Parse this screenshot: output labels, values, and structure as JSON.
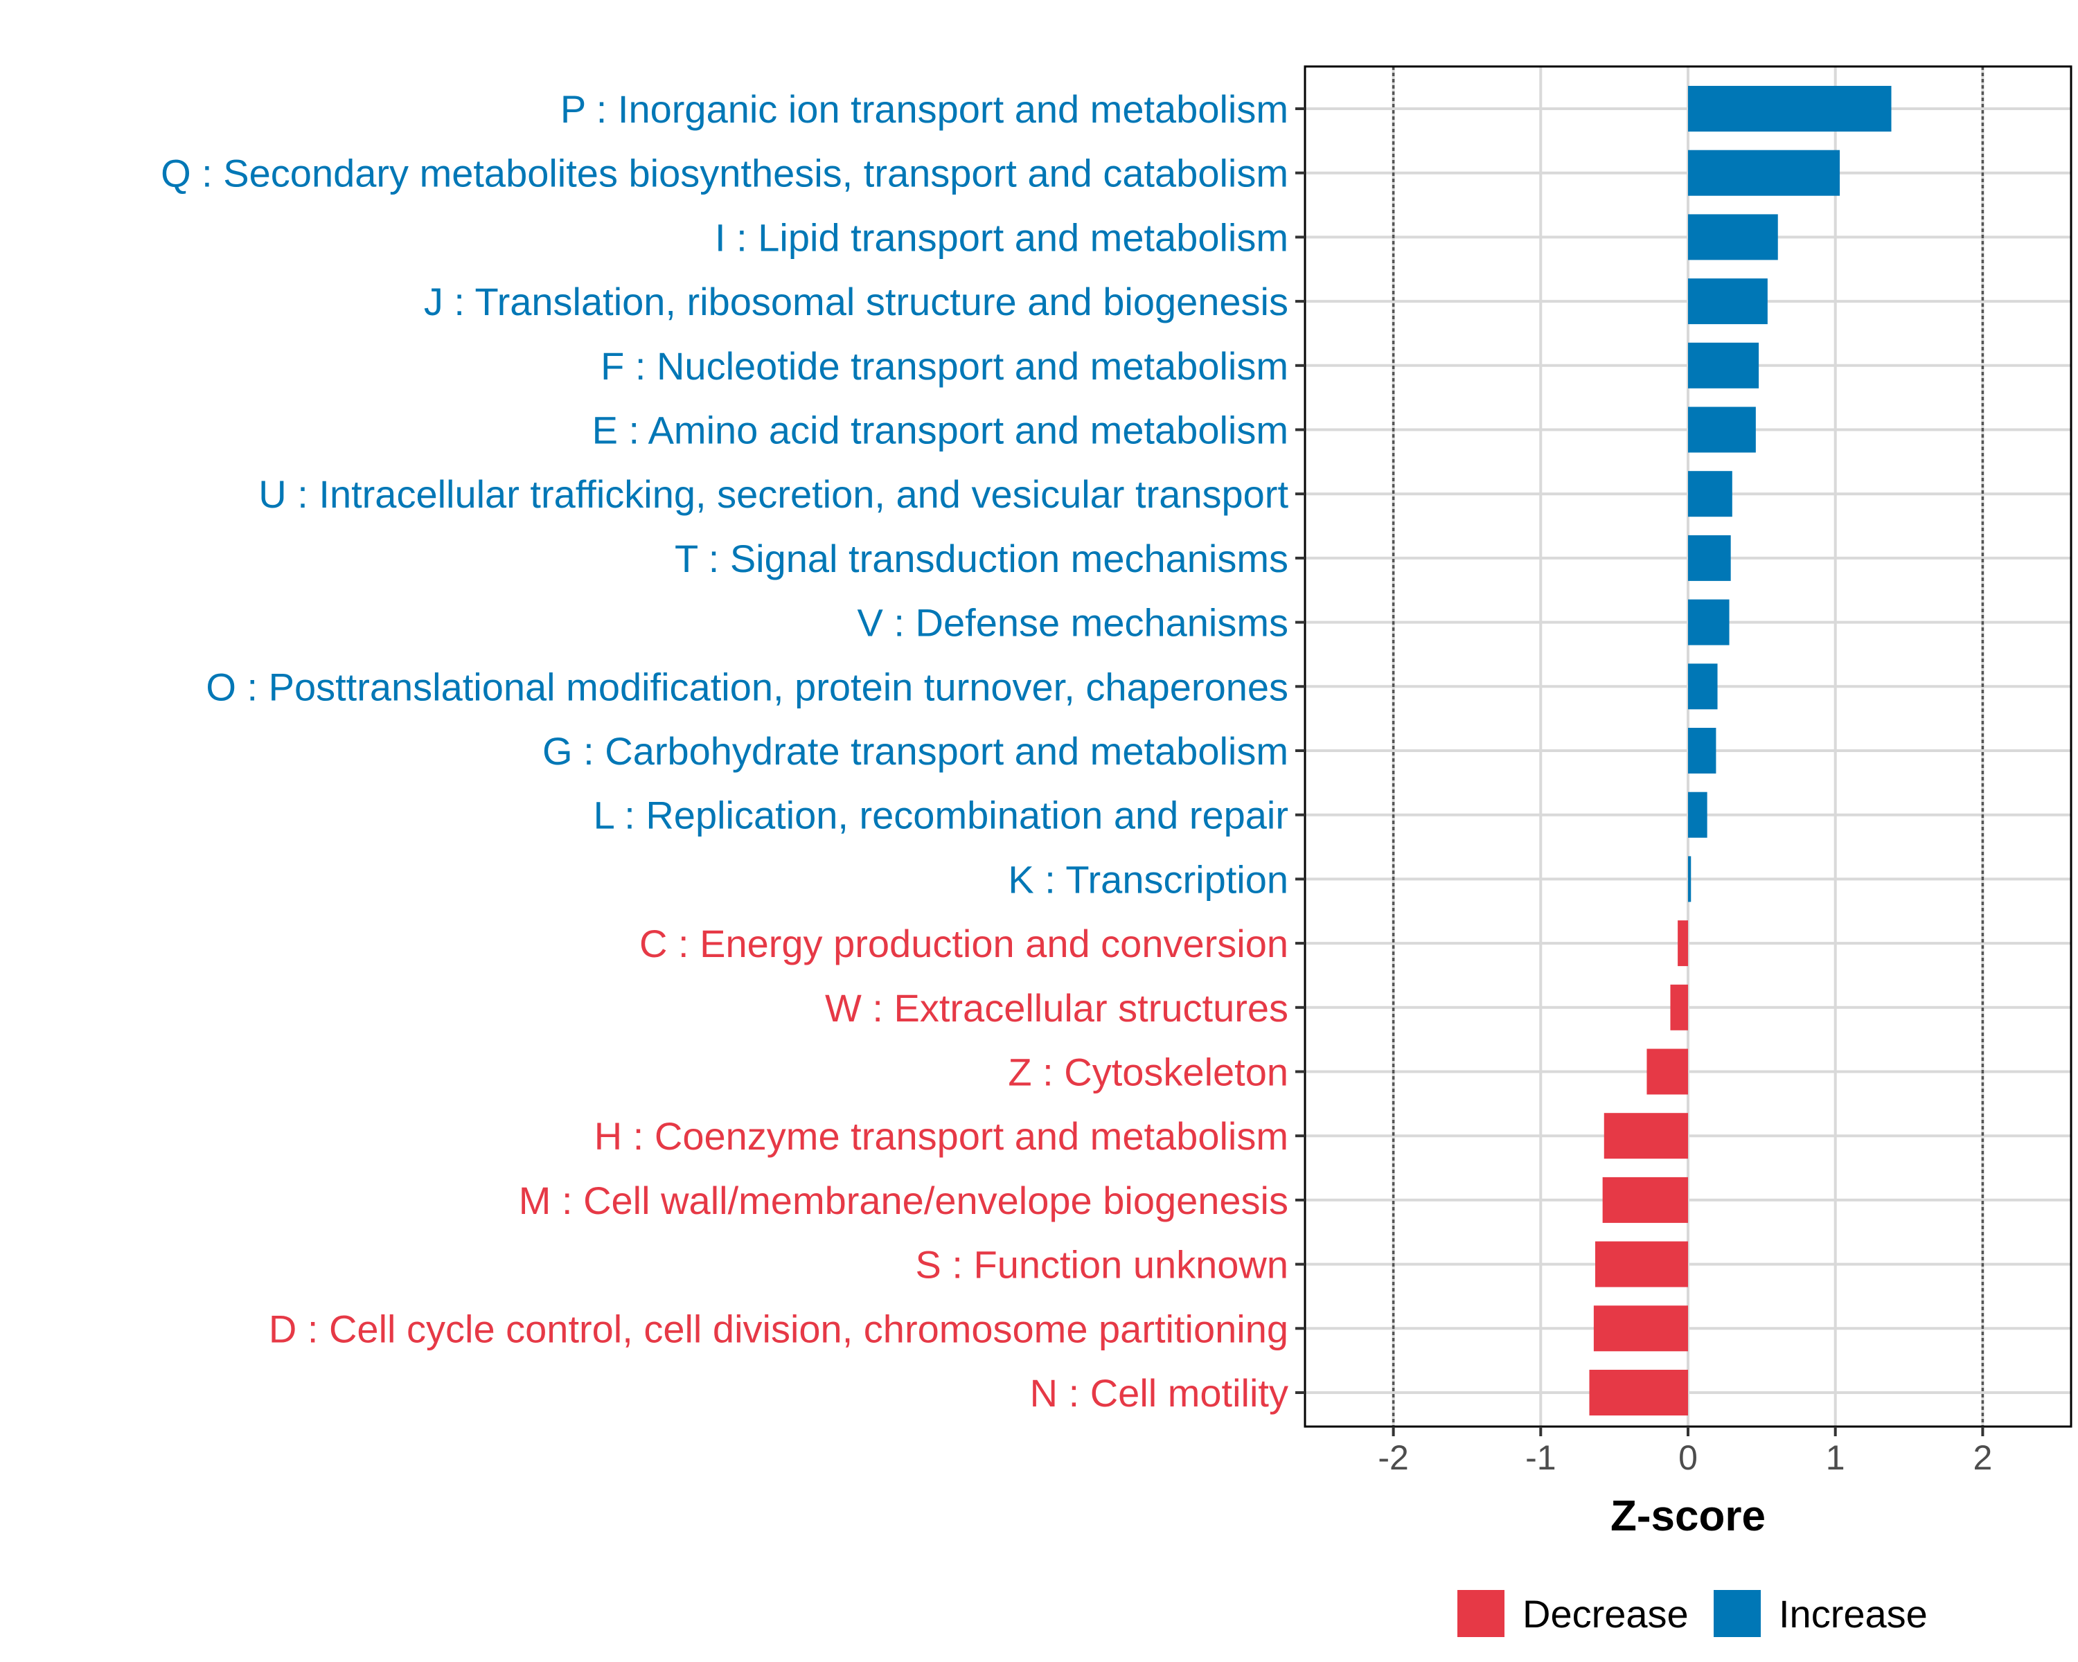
{
  "chart_data": {
    "type": "bar",
    "orientation": "horizontal",
    "xlabel": "Z-score",
    "ylabel": "",
    "xlim": [
      -2.6,
      2.6
    ],
    "xticks": [
      -2,
      -1,
      0,
      1,
      2
    ],
    "xtick_labels": [
      "-2",
      "-1",
      "0",
      "1",
      "2"
    ],
    "reference_lines": [
      -2,
      2
    ],
    "grid": true,
    "categories": [
      "P : Inorganic ion transport and metabolism",
      "Q : Secondary metabolites biosynthesis, transport and catabolism",
      "I : Lipid transport and metabolism",
      "J : Translation, ribosomal structure and biogenesis",
      "F : Nucleotide transport and metabolism",
      "E : Amino acid transport and metabolism",
      "U : Intracellular trafficking, secretion, and vesicular transport",
      "T : Signal transduction mechanisms",
      "V : Defense mechanisms",
      "O : Posttranslational modification, protein turnover, chaperones",
      "G : Carbohydrate transport and metabolism",
      "L : Replication, recombination and repair",
      "K : Transcription",
      "C : Energy production and conversion",
      "W : Extracellular structures",
      "Z : Cytoskeleton",
      "H : Coenzyme transport and metabolism",
      "M : Cell wall/membrane/envelope biogenesis",
      "S : Function unknown",
      "D : Cell cycle control, cell division, chromosome partitioning",
      "N : Cell motility"
    ],
    "values": [
      1.38,
      1.03,
      0.61,
      0.54,
      0.48,
      0.46,
      0.3,
      0.29,
      0.28,
      0.2,
      0.19,
      0.13,
      0.02,
      -0.07,
      -0.12,
      -0.28,
      -0.57,
      -0.58,
      -0.63,
      -0.64,
      -0.67
    ],
    "groups": [
      "Increase",
      "Increase",
      "Increase",
      "Increase",
      "Increase",
      "Increase",
      "Increase",
      "Increase",
      "Increase",
      "Increase",
      "Increase",
      "Increase",
      "Increase",
      "Decrease",
      "Decrease",
      "Decrease",
      "Decrease",
      "Decrease",
      "Decrease",
      "Decrease",
      "Decrease"
    ],
    "legend": {
      "position": "bottom",
      "entries": [
        {
          "label": "Decrease",
          "color": "#e63946"
        },
        {
          "label": "Increase",
          "color": "#0077b6"
        }
      ]
    }
  },
  "colors": {
    "increase": "#0077b6",
    "decrease": "#e63946",
    "grid": "#d9d9d9",
    "panel_border": "#000000",
    "reference_line": "#555555"
  }
}
